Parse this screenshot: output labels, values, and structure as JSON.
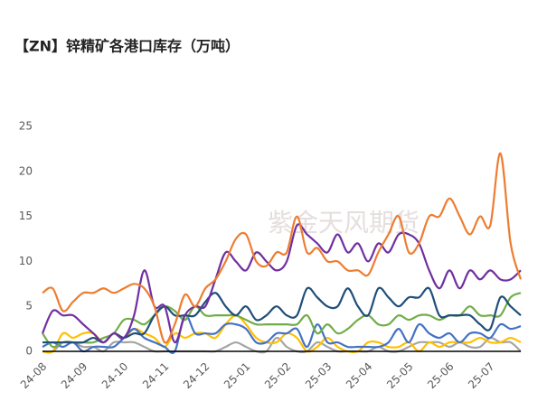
{
  "chart_data": {
    "type": "line",
    "title": "【ZN】锌精矿各港口库存（万吨）",
    "watermark": "紫金天风期货",
    "categories": [
      "24-08",
      null,
      null,
      null,
      "24-09",
      null,
      null,
      null,
      "24-10",
      null,
      null,
      null,
      "24-11",
      null,
      null,
      null,
      "24-12",
      null,
      null,
      null,
      "25-01",
      null,
      null,
      null,
      "25-02",
      null,
      null,
      null,
      "25-03",
      null,
      null,
      null,
      "25-04",
      null,
      null,
      null,
      "25-05",
      null,
      null,
      null,
      "25-06",
      null,
      null,
      null,
      "25-07",
      null,
      null,
      null
    ],
    "series": [
      {
        "color": "#ED7D31",
        "values": [
          6.5,
          7,
          4.5,
          5.5,
          6.5,
          6.5,
          7,
          6.5,
          7,
          7.5,
          7,
          5,
          1,
          3,
          6.3,
          5,
          7,
          8,
          10,
          12.5,
          13,
          10,
          9.5,
          11,
          11,
          15,
          11,
          11.5,
          10,
          10,
          9,
          9,
          8.5,
          11,
          13,
          15,
          11,
          12,
          15,
          15,
          17,
          15,
          13,
          15,
          14,
          22,
          12,
          8
        ]
      },
      {
        "color": "#7030A0",
        "values": [
          2,
          4.5,
          4,
          4,
          3,
          2,
          1,
          2,
          1.5,
          4,
          9,
          5,
          5,
          1,
          4,
          5,
          5,
          8,
          11,
          10,
          9,
          11,
          10,
          9,
          10,
          14,
          13,
          12,
          11,
          13,
          11,
          12,
          10,
          12,
          11,
          13,
          13,
          12,
          9,
          7,
          9,
          7,
          9,
          8,
          9,
          8,
          8,
          9
        ]
      },
      {
        "color": "#1F4E79",
        "values": [
          1,
          1,
          1,
          1,
          1,
          1.5,
          1,
          2,
          1.5,
          2,
          2,
          4,
          5,
          4,
          4,
          4,
          5.5,
          6.5,
          5,
          4,
          5,
          3.5,
          4,
          5,
          4,
          4,
          7,
          6,
          5,
          5,
          7,
          5,
          4,
          7,
          6,
          5,
          6,
          6,
          7,
          4,
          4,
          4,
          4,
          3,
          2.5,
          6,
          5,
          4
        ]
      },
      {
        "color": "#70AD47",
        "values": [
          2,
          0.5,
          1,
          1,
          1,
          1,
          1.5,
          2,
          3.5,
          3.5,
          3,
          4,
          5,
          4.5,
          3.5,
          5,
          4,
          4,
          4,
          4,
          3.5,
          3,
          3,
          3,
          3,
          3,
          4,
          2,
          3,
          2,
          2.5,
          3.5,
          4,
          3,
          3,
          4,
          3.5,
          4,
          4,
          3.5,
          4,
          4,
          5,
          4,
          4,
          4,
          6,
          6.5
        ]
      },
      {
        "color": "#4472C4",
        "values": [
          0.5,
          1,
          0.5,
          1,
          0,
          0.5,
          0.5,
          0.5,
          1.5,
          2.5,
          1.5,
          1,
          0.5,
          0,
          4,
          2,
          2,
          2,
          3,
          3,
          2.5,
          1,
          1,
          2,
          2,
          2.5,
          0.5,
          3,
          1,
          1,
          0.5,
          0.5,
          0.5,
          0.5,
          1,
          2.5,
          1,
          3,
          2,
          1.5,
          2,
          1,
          2,
          2,
          1.5,
          3,
          2.5,
          2.8
        ]
      },
      {
        "color": "#FFC000",
        "values": [
          0,
          0,
          2,
          1.5,
          2,
          2,
          1,
          2,
          1.5,
          2.5,
          2,
          1.5,
          0.5,
          2,
          1.5,
          2,
          2,
          1.5,
          3,
          4,
          3,
          1.5,
          1,
          1,
          2,
          1.5,
          0,
          0.5,
          1.5,
          0.5,
          0,
          0,
          1,
          1,
          0.5,
          0.5,
          1,
          0,
          1,
          0.5,
          1,
          1,
          1,
          1.5,
          1,
          1,
          1.5,
          1
        ]
      },
      {
        "color": "#A5A5A5",
        "values": [
          0,
          0,
          1,
          1,
          0.5,
          0.5,
          0,
          1,
          1,
          1,
          0.5,
          0,
          0,
          0,
          0,
          0,
          0,
          0,
          0.5,
          1,
          0.5,
          0,
          0,
          1.5,
          0.5,
          0,
          0,
          1,
          0.5,
          0,
          0,
          0,
          0,
          0.5,
          0,
          0,
          0.5,
          1,
          1,
          1,
          0.5,
          1,
          0.5,
          0.5,
          1.5,
          1,
          1,
          0
        ]
      }
    ],
    "ylim": [
      0,
      25
    ],
    "yticks": [
      0,
      5,
      10,
      15,
      20,
      25
    ],
    "grid": false
  }
}
